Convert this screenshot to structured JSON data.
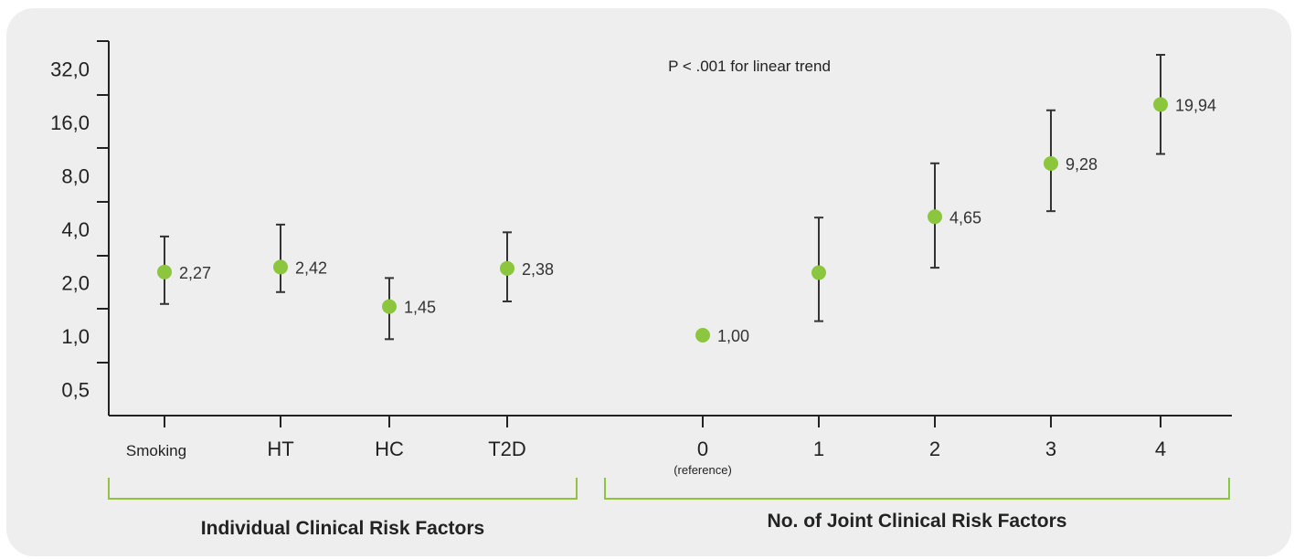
{
  "chart_data": {
    "type": "scatter",
    "y_scale": "log2",
    "ylim": [
      0.35,
      45
    ],
    "y_ticks": [
      {
        "value": 0.5,
        "label": "0,5"
      },
      {
        "value": 1,
        "label": "1,0"
      },
      {
        "value": 2,
        "label": "2,0"
      },
      {
        "value": 4,
        "label": "4,0"
      },
      {
        "value": 8,
        "label": "8,0"
      },
      {
        "value": 16,
        "label": "16,0"
      },
      {
        "value": 32,
        "label": "32,0"
      }
    ],
    "annotation": "P < .001 for linear trend",
    "groups": [
      {
        "label": "Individual Clinical Risk Factors"
      },
      {
        "label": "No. of Joint Clinical Risk Factors"
      }
    ],
    "points": [
      {
        "category": "Smoking",
        "sublabel": "",
        "value": 2.27,
        "label": "2,27",
        "ci": [
          1.5,
          3.6
        ],
        "group": 0
      },
      {
        "category": "HT",
        "sublabel": "",
        "value": 2.42,
        "label": "2,42",
        "ci": [
          1.75,
          4.2
        ],
        "group": 0
      },
      {
        "category": "HC",
        "sublabel": "",
        "value": 1.45,
        "label": "1,45",
        "ci": [
          0.95,
          2.1
        ],
        "group": 0
      },
      {
        "category": "T2D",
        "sublabel": "",
        "value": 2.38,
        "label": "2,38",
        "ci": [
          1.55,
          3.8
        ],
        "group": 0
      },
      {
        "category": "0",
        "sublabel": "(reference)",
        "value": 1.0,
        "label": "1,00",
        "ci": null,
        "group": 1
      },
      {
        "category": "1",
        "sublabel": "",
        "value": 2.25,
        "label": "",
        "ci": [
          1.2,
          4.6
        ],
        "group": 1
      },
      {
        "category": "2",
        "sublabel": "",
        "value": 4.65,
        "label": "4,65",
        "ci": [
          2.4,
          9.3
        ],
        "group": 1
      },
      {
        "category": "3",
        "sublabel": "",
        "value": 9.28,
        "label": "9,28",
        "ci": [
          5.0,
          18.5
        ],
        "group": 1
      },
      {
        "category": "4",
        "sublabel": "",
        "value": 19.94,
        "label": "19,94",
        "ci": [
          10.5,
          38.0
        ],
        "group": 1
      }
    ],
    "colors": {
      "marker": "#8cc63f",
      "errorbar": "#333333",
      "axis": "#222222",
      "bracket": "#8cc63f"
    }
  }
}
